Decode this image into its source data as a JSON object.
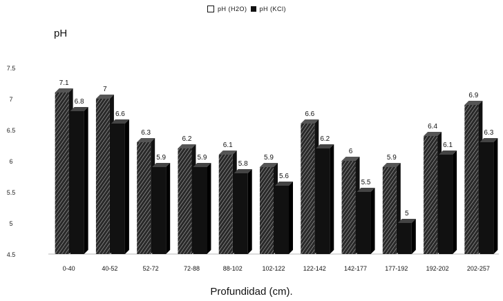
{
  "chart_data": {
    "type": "bar",
    "title": "",
    "xlabel": "Profundidad (cm).",
    "ylabel": "pH",
    "ylim": [
      4.5,
      7.5
    ],
    "yticks": [
      "4.5",
      "5",
      "5.5",
      "6",
      "6.5",
      "7",
      "7.5"
    ],
    "categories": [
      "0-40",
      "40-52",
      "52-72",
      "72-88",
      "88-102",
      "102-122",
      "122-142",
      "142-177",
      "177-192",
      "192-202",
      "202-257"
    ],
    "series": [
      {
        "name": "pH (H2O)",
        "color": "#1a1a1a",
        "pattern": "hatched",
        "values": [
          7.1,
          7.0,
          6.3,
          6.2,
          6.1,
          5.9,
          6.6,
          6.0,
          5.9,
          6.4,
          6.9
        ],
        "labels": [
          "7.1",
          "7",
          "6.3",
          "6.2",
          "6.1",
          "5.9",
          "6.6",
          "6",
          "5.9",
          "6.4",
          "6.9"
        ]
      },
      {
        "name": "pH (KCl)",
        "color": "#0d0d0d",
        "pattern": "solid",
        "values": [
          6.8,
          6.6,
          5.9,
          5.9,
          5.8,
          5.6,
          6.2,
          5.5,
          5.0,
          6.1,
          6.3
        ],
        "labels": [
          "6.8",
          "6.6",
          "5.9",
          "5.9",
          "5.8",
          "5.6",
          "6.2",
          "5.5",
          "5",
          "6.1",
          "6.3"
        ]
      }
    ],
    "legend_position": "top-center",
    "grid": false
  },
  "legend": {
    "h2o": "pH (H2O)",
    "kcl": "pH (KCl)"
  }
}
